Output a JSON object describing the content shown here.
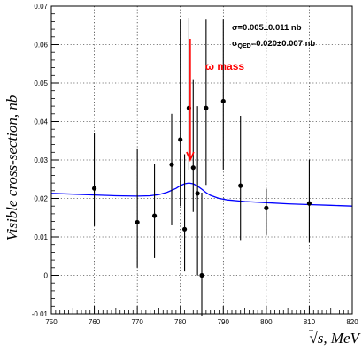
{
  "chart_data": {
    "type": "scatter",
    "title": "",
    "xlabel_root": "√",
    "xlabel_rest": "s, MeV",
    "ylabel": "Visible cross-section, nb",
    "xlim": [
      750,
      820
    ],
    "ylim": [
      -0.01,
      0.07
    ],
    "x_ticks": [
      "750",
      "760",
      "770",
      "780",
      "790",
      "800",
      "810",
      "820"
    ],
    "y_ticks": [
      "-0.01",
      "0",
      "0.01",
      "0.02",
      "0.03",
      "0.04",
      "0.05",
      "0.06",
      "0.07"
    ],
    "grid": true,
    "series": [
      {
        "kind": "points_with_errorbars",
        "color": "#000000",
        "points": [
          {
            "x": 760,
            "y": 0.0226,
            "lo": 0.0128,
            "hi": 0.037
          },
          {
            "x": 770,
            "y": 0.0138,
            "lo": 0.002,
            "hi": 0.0328
          },
          {
            "x": 774,
            "y": 0.0155,
            "lo": 0.0045,
            "hi": 0.029
          },
          {
            "x": 778,
            "y": 0.0288,
            "lo": 0.013,
            "hi": 0.042
          },
          {
            "x": 780,
            "y": 0.0353,
            "lo": 0.018,
            "hi": 0.0665
          },
          {
            "x": 781,
            "y": 0.012,
            "lo": 0.001,
            "hi": 0.0315
          },
          {
            "x": 782,
            "y": 0.0435,
            "lo": 0.0275,
            "hi": 0.067
          },
          {
            "x": 783,
            "y": 0.028,
            "lo": 0.0165,
            "hi": 0.051
          },
          {
            "x": 784,
            "y": 0.0213,
            "lo": 0.0,
            "hi": 0.044
          },
          {
            "x": 785,
            "y": 0.0,
            "lo": -0.0105,
            "hi": 0.0215
          },
          {
            "x": 786,
            "y": 0.0435,
            "lo": 0.0235,
            "hi": 0.0665
          },
          {
            "x": 790,
            "y": 0.0453,
            "lo": 0.0275,
            "hi": 0.0665
          },
          {
            "x": 794,
            "y": 0.0233,
            "lo": 0.009,
            "hi": 0.0415
          },
          {
            "x": 800,
            "y": 0.0175,
            "lo": 0.0105,
            "hi": 0.0225
          },
          {
            "x": 810,
            "y": 0.0187,
            "lo": 0.0085,
            "hi": 0.03
          }
        ]
      },
      {
        "kind": "fit_curve",
        "color": "#0000ff",
        "x": [
          750,
          755,
          760,
          765,
          770,
          773,
          775,
          777,
          779,
          780,
          781,
          782,
          783,
          784,
          785,
          786,
          787,
          789,
          791,
          795,
          800,
          805,
          810,
          815,
          820
        ],
        "y": [
          0.0213,
          0.0211,
          0.0209,
          0.0207,
          0.0206,
          0.0207,
          0.021,
          0.0216,
          0.0226,
          0.0233,
          0.0238,
          0.024,
          0.0238,
          0.0232,
          0.0224,
          0.0215,
          0.0208,
          0.02,
          0.0196,
          0.0192,
          0.0189,
          0.0186,
          0.0184,
          0.0182,
          0.018
        ]
      }
    ],
    "annotations": {
      "sigma_line1": "σ=0.005±0.011 nb",
      "sigma_line2_prefix": "σ",
      "sigma_line2_sub": "QED",
      "sigma_line2_rest": "=0.020±0.007 nb",
      "omega_label": "ω mass",
      "omega_color": "#ff0000",
      "arrow_x": 782.3,
      "arrow_y_top": 0.0615,
      "arrow_y_bottom": 0.03
    }
  }
}
